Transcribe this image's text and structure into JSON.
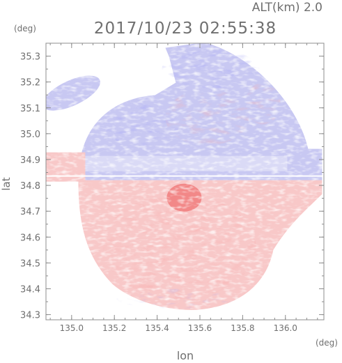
{
  "chart_data": {
    "type": "heatmap",
    "top_label": "ALT(km) 2.0",
    "title": "2017/10/23 02:55:38",
    "ylabel": "lat",
    "xlabel": "lon",
    "y_unit": "(deg)",
    "x_unit": "(deg)",
    "x_ticks": [
      135.0,
      135.2,
      135.4,
      135.6,
      135.8,
      136.0
    ],
    "y_ticks": [
      34.3,
      34.4,
      34.5,
      34.6,
      34.7,
      34.8,
      34.9,
      35.0,
      35.1,
      35.2,
      35.3
    ],
    "x_tick_labels": [
      "135.0",
      "135.2",
      "135.4",
      "135.6",
      "135.8",
      "136.0"
    ],
    "y_tick_labels": [
      "34.3",
      "34.4",
      "34.5",
      "34.6",
      "34.7",
      "34.8",
      "34.9",
      "35.0",
      "35.1",
      "35.2",
      "35.3"
    ],
    "xlim": [
      134.88,
      136.18
    ],
    "ylim": [
      34.28,
      35.35
    ],
    "radar_center": [
      135.52,
      34.82
    ],
    "colors": {
      "positive": "#f07878",
      "positive_light": "#f8c8c8",
      "negative": "#6e6ee8",
      "negative_light": "#c8c8f2",
      "axis": "#8c8c8c",
      "text": "#6f6f6f"
    }
  }
}
